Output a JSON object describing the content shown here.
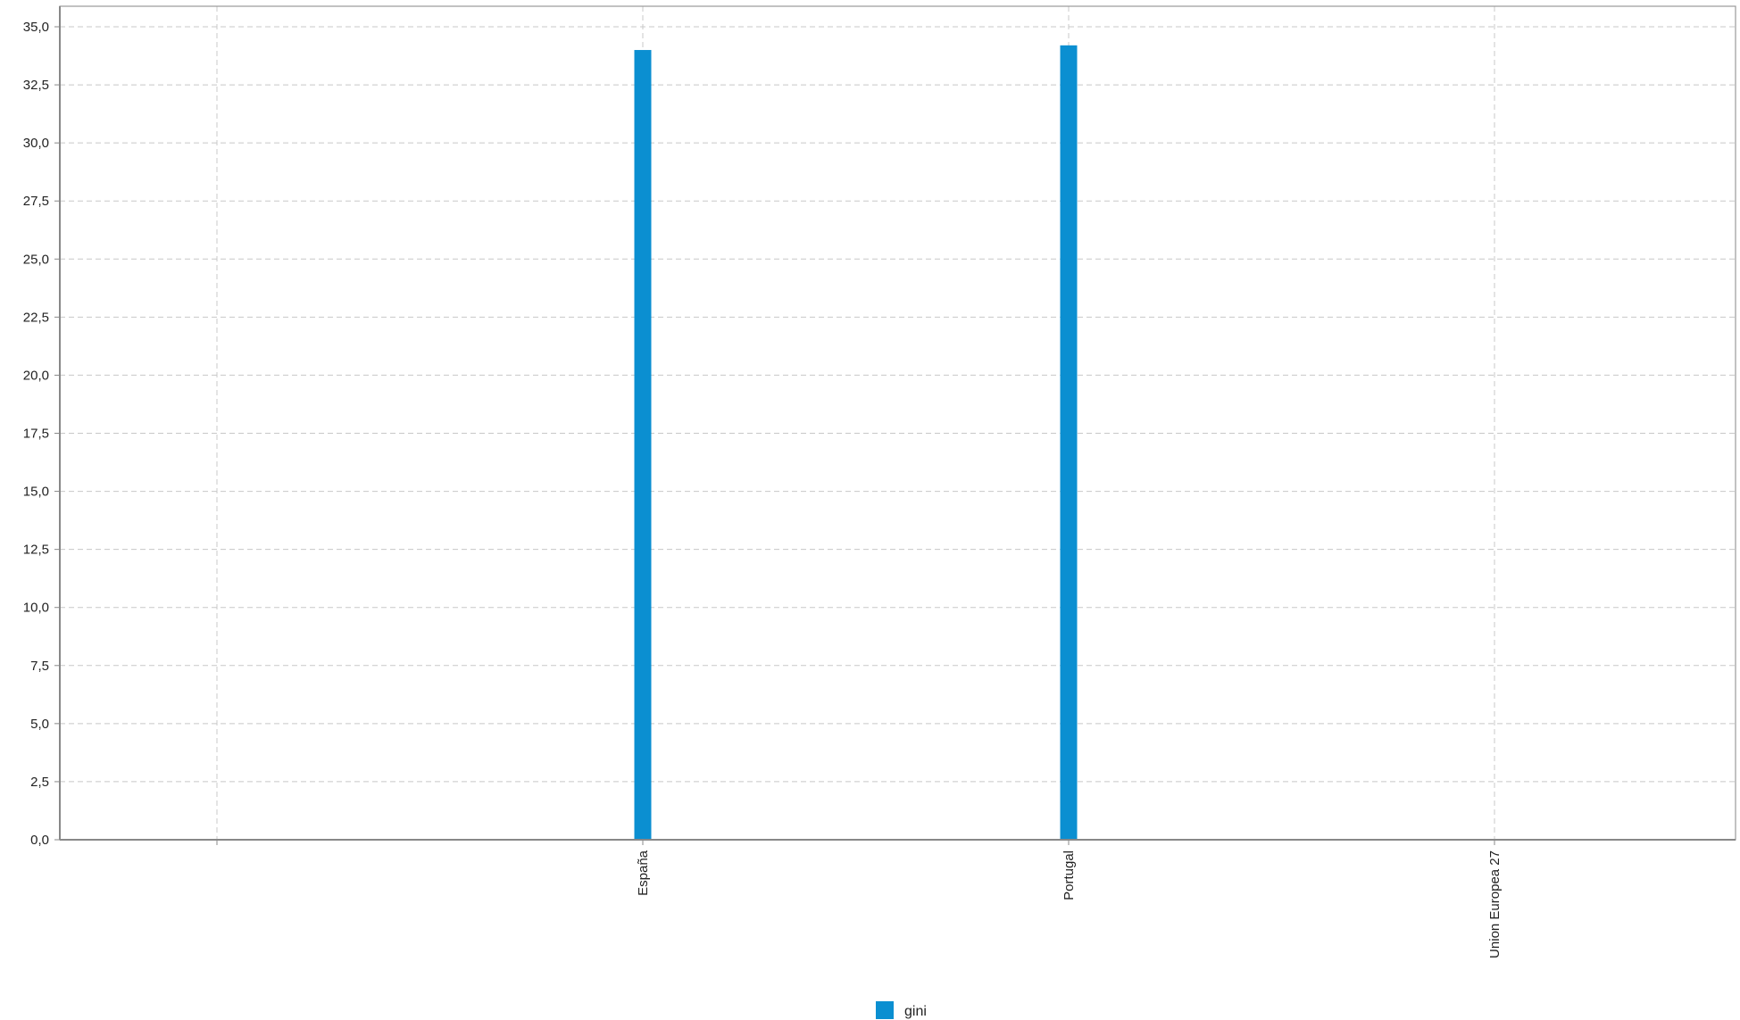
{
  "chart_data": {
    "type": "bar",
    "categories": [
      "",
      "España",
      "Portugal",
      "Union Europea 27"
    ],
    "series": [
      {
        "name": "gini",
        "values": [
          null,
          34.0,
          34.2,
          null
        ],
        "color": "#0b8fd1"
      }
    ],
    "ylim": [
      0,
      35
    ],
    "yticks": [
      0,
      2.5,
      5,
      7.5,
      10,
      12.5,
      15,
      17.5,
      20,
      22.5,
      25,
      27.5,
      30,
      32.5,
      35
    ],
    "ytick_labels": [
      "0,0",
      "2,5",
      "5,0",
      "7,5",
      "10,0",
      "12,5",
      "15,0",
      "17,5",
      "20,0",
      "22,5",
      "25,0",
      "27,5",
      "30,0",
      "32,5",
      "35,0"
    ],
    "grid": true,
    "legend": "bottom-center",
    "xlabel": "",
    "ylabel": "",
    "title": ""
  },
  "colors": {
    "grid": "#c8c8c8",
    "axis": "#888888",
    "frame": "#999999"
  }
}
